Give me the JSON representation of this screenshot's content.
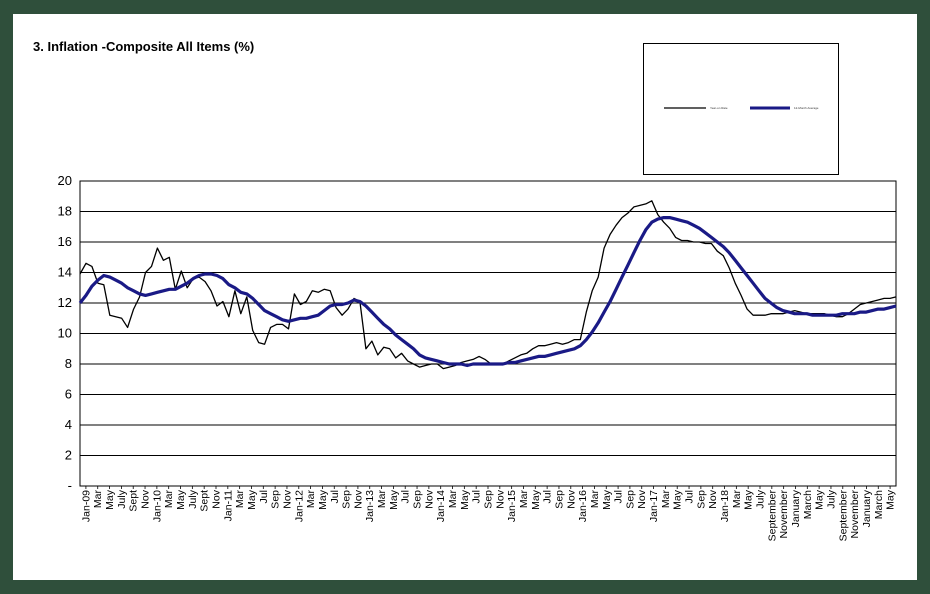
{
  "chart_data": {
    "type": "line",
    "title": "3. Inflation -Composite All Items (%)",
    "xlabel": "",
    "ylabel": "",
    "ylim": [
      0,
      20
    ],
    "yticks": [
      "-",
      "2",
      "4",
      "6",
      "8",
      "10",
      "12",
      "14",
      "16",
      "18",
      "20"
    ],
    "grid": true,
    "legend_position": "top-right",
    "x_tick_labels": [
      "Jan-09",
      "Mar",
      "May",
      "July",
      "Sept",
      "Nov",
      "Jan-10",
      "Mar",
      "May",
      "July",
      "Sept",
      "Nov",
      "Jan-11",
      "Mar",
      "May",
      "Jul",
      "Sep",
      "Nov",
      "Jan-12",
      "Mar",
      "May",
      "Jul",
      "Sep",
      "Nov",
      "Jan-13",
      "Mar",
      "May",
      "Jul",
      "Sep",
      "Nov",
      "Jan-14",
      "Mar",
      "May",
      "Jul",
      "Sep",
      "Nov",
      "Jan-15",
      "Mar",
      "May",
      "Jul",
      "Sep",
      "Nov",
      "Jan-16",
      "Mar",
      "May",
      "Jul",
      "Sep",
      "Nov",
      "Jan-17",
      "Mar",
      "May",
      "Jul",
      "Sep",
      "Nov",
      "Jan-18",
      "Mar",
      "May",
      "July",
      "September",
      "November",
      "January",
      "March",
      "May",
      "July",
      "September",
      "November",
      "January",
      "March",
      "May"
    ],
    "series": [
      {
        "name": "Year-on Rate",
        "color": "#000000",
        "values": [
          13.9,
          14.6,
          14.4,
          13.3,
          13.2,
          11.2,
          11.1,
          11.0,
          10.4,
          11.6,
          12.4,
          14.0,
          14.4,
          15.6,
          14.8,
          15.0,
          12.9,
          14.1,
          13.0,
          13.6,
          13.7,
          13.4,
          12.8,
          11.8,
          12.1,
          11.1,
          12.8,
          11.3,
          12.4,
          10.2,
          9.4,
          9.3,
          10.4,
          10.6,
          10.6,
          10.3,
          12.6,
          11.9,
          12.1,
          12.8,
          12.7,
          12.9,
          12.8,
          11.7,
          11.2,
          11.6,
          12.3,
          12.1,
          9.0,
          9.5,
          8.6,
          9.1,
          9.0,
          8.4,
          8.7,
          8.2,
          8.0,
          7.8,
          7.9,
          8.0,
          8.0,
          7.7,
          7.8,
          7.9,
          8.1,
          8.2,
          8.3,
          8.5,
          8.3,
          8.0,
          8.0,
          8.0,
          8.2,
          8.4,
          8.6,
          8.7,
          9.0,
          9.2,
          9.2,
          9.3,
          9.4,
          9.3,
          9.4,
          9.6,
          9.6,
          11.4,
          12.8,
          13.7,
          15.6,
          16.5,
          17.1,
          17.6,
          17.9,
          18.3,
          18.4,
          18.5,
          18.7,
          17.8,
          17.3,
          16.9,
          16.3,
          16.1,
          16.1,
          16.0,
          16.0,
          15.9,
          15.9,
          15.4,
          15.1,
          14.3,
          13.3,
          12.5,
          11.6,
          11.2,
          11.2,
          11.2,
          11.3,
          11.3,
          11.3,
          11.4,
          11.5,
          11.4,
          11.3,
          11.3,
          11.3,
          11.3,
          11.2,
          11.1,
          11.1,
          11.3,
          11.6,
          11.9,
          12.0,
          12.1,
          12.2,
          12.3,
          12.3,
          12.4
        ]
      },
      {
        "name": "12-Month Average",
        "color": "#1a1a86",
        "values": [
          12.0,
          12.5,
          13.1,
          13.5,
          13.8,
          13.7,
          13.5,
          13.3,
          13.0,
          12.8,
          12.6,
          12.5,
          12.6,
          12.7,
          12.8,
          12.9,
          12.9,
          13.1,
          13.3,
          13.6,
          13.8,
          13.9,
          13.9,
          13.8,
          13.6,
          13.2,
          13.0,
          12.7,
          12.6,
          12.3,
          11.9,
          11.5,
          11.3,
          11.1,
          10.9,
          10.8,
          10.9,
          11.0,
          11.0,
          11.1,
          11.2,
          11.5,
          11.8,
          11.9,
          11.9,
          12.0,
          12.2,
          12.1,
          11.8,
          11.4,
          11.0,
          10.6,
          10.3,
          9.9,
          9.6,
          9.3,
          9.0,
          8.6,
          8.4,
          8.3,
          8.2,
          8.1,
          8.0,
          8.0,
          8.0,
          7.9,
          8.0,
          8.0,
          8.0,
          8.0,
          8.0,
          8.0,
          8.1,
          8.1,
          8.2,
          8.3,
          8.4,
          8.5,
          8.5,
          8.6,
          8.7,
          8.8,
          8.9,
          9.0,
          9.2,
          9.6,
          10.1,
          10.7,
          11.4,
          12.1,
          12.9,
          13.7,
          14.5,
          15.3,
          16.1,
          16.8,
          17.3,
          17.5,
          17.6,
          17.6,
          17.5,
          17.4,
          17.3,
          17.1,
          16.9,
          16.6,
          16.3,
          16.0,
          15.7,
          15.3,
          14.8,
          14.3,
          13.8,
          13.3,
          12.8,
          12.3,
          12.0,
          11.7,
          11.5,
          11.4,
          11.3,
          11.3,
          11.3,
          11.2,
          11.2,
          11.2,
          11.2,
          11.2,
          11.3,
          11.3,
          11.3,
          11.4,
          11.4,
          11.5,
          11.6,
          11.6,
          11.7,
          11.8
        ]
      }
    ]
  }
}
